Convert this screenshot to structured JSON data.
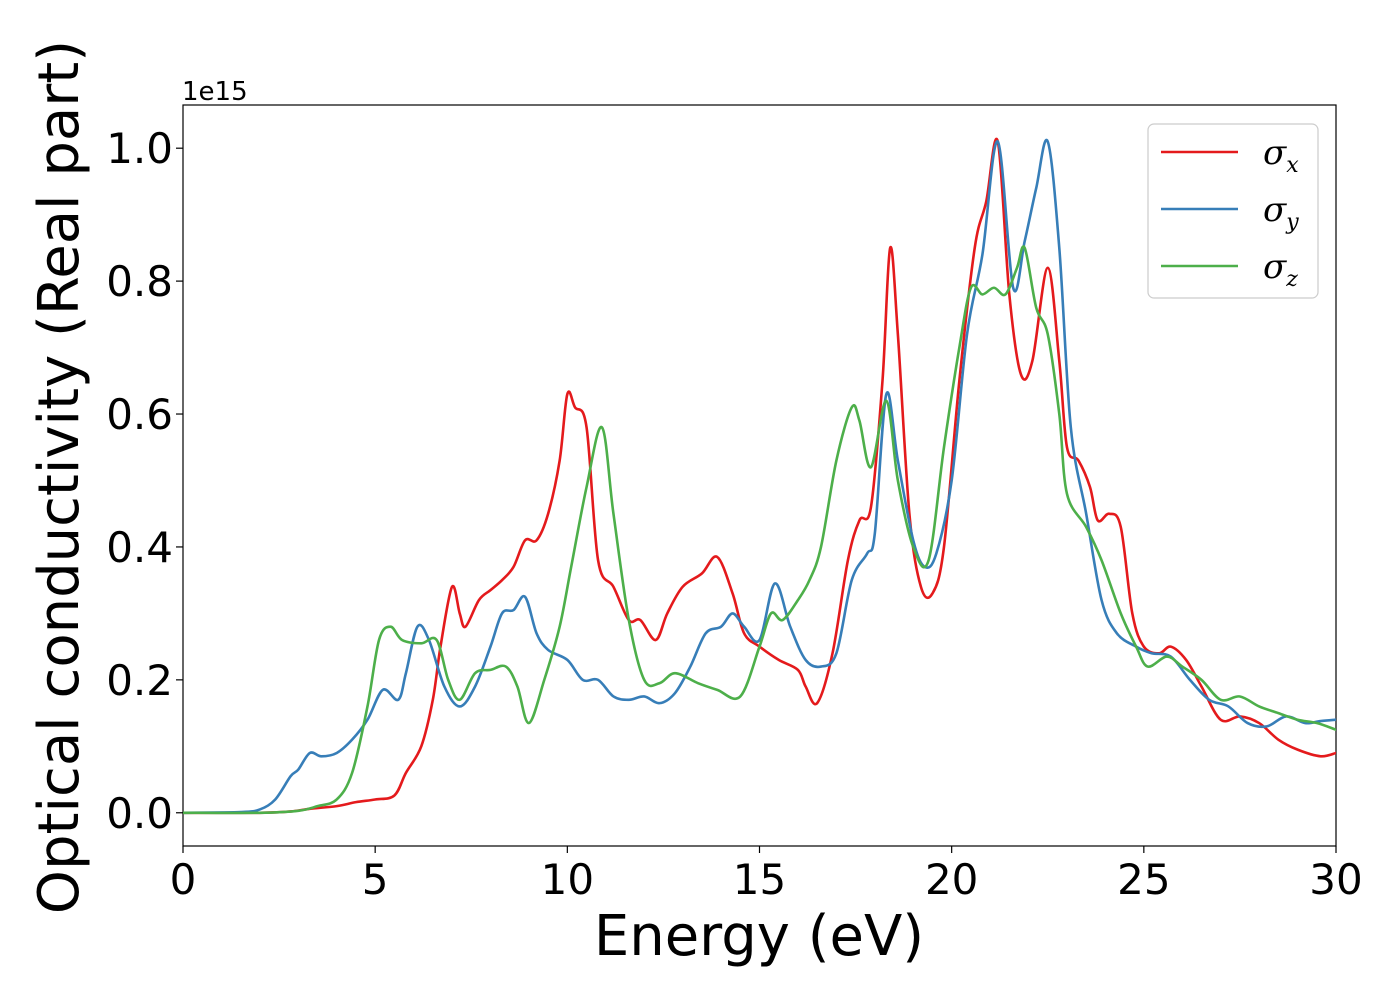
{
  "chart_data": {
    "type": "line",
    "xlabel": "Energy (eV)",
    "ylabel": "Optical conductivity (Real part)",
    "y_offset_label": "1e15",
    "xlim": [
      0,
      30
    ],
    "ylim": [
      -0.05,
      1.065
    ],
    "x_ticks": [
      0,
      5,
      10,
      15,
      20,
      25,
      30
    ],
    "x_tick_labels": [
      "0",
      "5",
      "10",
      "15",
      "20",
      "25",
      "30"
    ],
    "y_ticks": [
      0.0,
      0.2,
      0.4,
      0.6,
      0.8,
      1.0
    ],
    "y_tick_labels": [
      "0.0",
      "0.2",
      "0.4",
      "0.6",
      "0.8",
      "1.0"
    ],
    "grid": false,
    "legend_position": "top-right",
    "series": [
      {
        "name": "σ",
        "subscript": "x",
        "color": "#e41a1c",
        "points": [
          [
            0,
            0
          ],
          [
            1,
            0
          ],
          [
            2,
            0
          ],
          [
            2.8,
            0.002
          ],
          [
            3.3,
            0.006
          ],
          [
            4,
            0.01
          ],
          [
            4.5,
            0.016
          ],
          [
            5,
            0.02
          ],
          [
            5.5,
            0.026
          ],
          [
            5.8,
            0.06
          ],
          [
            6.2,
            0.1
          ],
          [
            6.5,
            0.17
          ],
          [
            6.7,
            0.25
          ],
          [
            7.0,
            0.34
          ],
          [
            7.2,
            0.3
          ],
          [
            7.35,
            0.28
          ],
          [
            7.7,
            0.32
          ],
          [
            8.0,
            0.335
          ],
          [
            8.3,
            0.35
          ],
          [
            8.6,
            0.37
          ],
          [
            8.9,
            0.41
          ],
          [
            9.2,
            0.41
          ],
          [
            9.5,
            0.45
          ],
          [
            9.8,
            0.53
          ],
          [
            10.0,
            0.63
          ],
          [
            10.2,
            0.61
          ],
          [
            10.5,
            0.58
          ],
          [
            10.8,
            0.38
          ],
          [
            11.2,
            0.34
          ],
          [
            11.6,
            0.29
          ],
          [
            11.9,
            0.29
          ],
          [
            12.3,
            0.26
          ],
          [
            12.6,
            0.3
          ],
          [
            13.0,
            0.34
          ],
          [
            13.5,
            0.36
          ],
          [
            13.9,
            0.385
          ],
          [
            14.3,
            0.33
          ],
          [
            14.6,
            0.27
          ],
          [
            15.0,
            0.25
          ],
          [
            15.5,
            0.23
          ],
          [
            16.0,
            0.215
          ],
          [
            16.2,
            0.19
          ],
          [
            16.5,
            0.165
          ],
          [
            16.9,
            0.24
          ],
          [
            17.3,
            0.38
          ],
          [
            17.6,
            0.44
          ],
          [
            17.9,
            0.46
          ],
          [
            18.2,
            0.65
          ],
          [
            18.4,
            0.85
          ],
          [
            18.6,
            0.72
          ],
          [
            18.9,
            0.45
          ],
          [
            19.2,
            0.34
          ],
          [
            19.5,
            0.33
          ],
          [
            19.8,
            0.4
          ],
          [
            20.2,
            0.65
          ],
          [
            20.6,
            0.85
          ],
          [
            20.9,
            0.92
          ],
          [
            21.2,
            1.01
          ],
          [
            21.5,
            0.78
          ],
          [
            21.8,
            0.66
          ],
          [
            22.1,
            0.68
          ],
          [
            22.5,
            0.82
          ],
          [
            22.8,
            0.68
          ],
          [
            23.0,
            0.55
          ],
          [
            23.3,
            0.53
          ],
          [
            23.6,
            0.49
          ],
          [
            23.8,
            0.44
          ],
          [
            24.1,
            0.45
          ],
          [
            24.4,
            0.43
          ],
          [
            24.7,
            0.3
          ],
          [
            25.0,
            0.25
          ],
          [
            25.4,
            0.24
          ],
          [
            25.7,
            0.25
          ],
          [
            26.1,
            0.23
          ],
          [
            26.5,
            0.19
          ],
          [
            27.0,
            0.14
          ],
          [
            27.5,
            0.145
          ],
          [
            28.0,
            0.135
          ],
          [
            28.5,
            0.11
          ],
          [
            29.0,
            0.095
          ],
          [
            29.6,
            0.085
          ],
          [
            30.0,
            0.09
          ]
        ]
      },
      {
        "name": "σ",
        "subscript": "y",
        "color": "#377eb8",
        "points": [
          [
            0,
            0
          ],
          [
            1.5,
            0.001
          ],
          [
            2.0,
            0.005
          ],
          [
            2.4,
            0.02
          ],
          [
            2.8,
            0.055
          ],
          [
            3.0,
            0.065
          ],
          [
            3.3,
            0.09
          ],
          [
            3.6,
            0.085
          ],
          [
            4.0,
            0.09
          ],
          [
            4.4,
            0.11
          ],
          [
            4.8,
            0.14
          ],
          [
            5.2,
            0.185
          ],
          [
            5.6,
            0.17
          ],
          [
            5.8,
            0.21
          ],
          [
            6.1,
            0.28
          ],
          [
            6.4,
            0.26
          ],
          [
            6.8,
            0.19
          ],
          [
            7.2,
            0.16
          ],
          [
            7.6,
            0.19
          ],
          [
            8.0,
            0.25
          ],
          [
            8.3,
            0.3
          ],
          [
            8.6,
            0.305
          ],
          [
            8.9,
            0.325
          ],
          [
            9.2,
            0.27
          ],
          [
            9.5,
            0.245
          ],
          [
            10.0,
            0.23
          ],
          [
            10.4,
            0.2
          ],
          [
            10.8,
            0.2
          ],
          [
            11.2,
            0.175
          ],
          [
            11.6,
            0.17
          ],
          [
            12.0,
            0.175
          ],
          [
            12.4,
            0.165
          ],
          [
            12.8,
            0.18
          ],
          [
            13.2,
            0.22
          ],
          [
            13.6,
            0.27
          ],
          [
            14.0,
            0.28
          ],
          [
            14.3,
            0.3
          ],
          [
            14.6,
            0.28
          ],
          [
            15.0,
            0.26
          ],
          [
            15.4,
            0.345
          ],
          [
            15.8,
            0.28
          ],
          [
            16.2,
            0.23
          ],
          [
            16.6,
            0.22
          ],
          [
            17.0,
            0.24
          ],
          [
            17.4,
            0.35
          ],
          [
            17.8,
            0.39
          ],
          [
            18.0,
            0.42
          ],
          [
            18.3,
            0.63
          ],
          [
            18.6,
            0.53
          ],
          [
            19.0,
            0.41
          ],
          [
            19.3,
            0.37
          ],
          [
            19.6,
            0.39
          ],
          [
            20.0,
            0.5
          ],
          [
            20.4,
            0.72
          ],
          [
            20.8,
            0.84
          ],
          [
            21.2,
            1.01
          ],
          [
            21.6,
            0.79
          ],
          [
            21.9,
            0.86
          ],
          [
            22.2,
            0.94
          ],
          [
            22.5,
            1.01
          ],
          [
            22.8,
            0.85
          ],
          [
            23.1,
            0.58
          ],
          [
            23.5,
            0.45
          ],
          [
            23.9,
            0.32
          ],
          [
            24.3,
            0.27
          ],
          [
            24.8,
            0.25
          ],
          [
            25.2,
            0.24
          ],
          [
            25.7,
            0.235
          ],
          [
            26.2,
            0.2
          ],
          [
            26.7,
            0.17
          ],
          [
            27.2,
            0.16
          ],
          [
            27.7,
            0.135
          ],
          [
            28.2,
            0.13
          ],
          [
            28.7,
            0.145
          ],
          [
            29.2,
            0.135
          ],
          [
            29.6,
            0.138
          ],
          [
            30.0,
            0.14
          ]
        ]
      },
      {
        "name": "σ",
        "subscript": "z",
        "color": "#4daf4a",
        "points": [
          [
            0,
            0
          ],
          [
            2.0,
            0
          ],
          [
            3.0,
            0.003
          ],
          [
            3.5,
            0.01
          ],
          [
            4.0,
            0.02
          ],
          [
            4.4,
            0.06
          ],
          [
            4.8,
            0.16
          ],
          [
            5.1,
            0.26
          ],
          [
            5.4,
            0.28
          ],
          [
            5.7,
            0.26
          ],
          [
            6.2,
            0.255
          ],
          [
            6.6,
            0.26
          ],
          [
            6.9,
            0.2
          ],
          [
            7.2,
            0.17
          ],
          [
            7.6,
            0.21
          ],
          [
            8.0,
            0.215
          ],
          [
            8.4,
            0.22
          ],
          [
            8.7,
            0.19
          ],
          [
            9.0,
            0.135
          ],
          [
            9.4,
            0.2
          ],
          [
            9.8,
            0.28
          ],
          [
            10.1,
            0.37
          ],
          [
            10.5,
            0.49
          ],
          [
            10.9,
            0.58
          ],
          [
            11.2,
            0.45
          ],
          [
            11.6,
            0.29
          ],
          [
            12.0,
            0.2
          ],
          [
            12.4,
            0.195
          ],
          [
            12.8,
            0.21
          ],
          [
            13.4,
            0.195
          ],
          [
            13.9,
            0.185
          ],
          [
            14.5,
            0.175
          ],
          [
            15.0,
            0.25
          ],
          [
            15.3,
            0.3
          ],
          [
            15.6,
            0.29
          ],
          [
            16.0,
            0.32
          ],
          [
            16.3,
            0.35
          ],
          [
            16.6,
            0.4
          ],
          [
            17.0,
            0.53
          ],
          [
            17.4,
            0.61
          ],
          [
            17.6,
            0.59
          ],
          [
            17.9,
            0.52
          ],
          [
            18.3,
            0.62
          ],
          [
            18.6,
            0.5
          ],
          [
            19.0,
            0.4
          ],
          [
            19.4,
            0.38
          ],
          [
            19.8,
            0.55
          ],
          [
            20.2,
            0.7
          ],
          [
            20.5,
            0.79
          ],
          [
            20.8,
            0.78
          ],
          [
            21.1,
            0.79
          ],
          [
            21.4,
            0.78
          ],
          [
            21.7,
            0.82
          ],
          [
            21.9,
            0.85
          ],
          [
            22.2,
            0.76
          ],
          [
            22.5,
            0.72
          ],
          [
            22.8,
            0.6
          ],
          [
            23.0,
            0.48
          ],
          [
            23.5,
            0.43
          ],
          [
            23.9,
            0.38
          ],
          [
            24.4,
            0.3
          ],
          [
            24.8,
            0.25
          ],
          [
            25.1,
            0.22
          ],
          [
            25.6,
            0.235
          ],
          [
            26.0,
            0.22
          ],
          [
            26.5,
            0.2
          ],
          [
            27.0,
            0.17
          ],
          [
            27.5,
            0.175
          ],
          [
            28.0,
            0.16
          ],
          [
            28.5,
            0.15
          ],
          [
            29.0,
            0.14
          ],
          [
            29.5,
            0.135
          ],
          [
            30.0,
            0.125
          ]
        ]
      }
    ]
  }
}
